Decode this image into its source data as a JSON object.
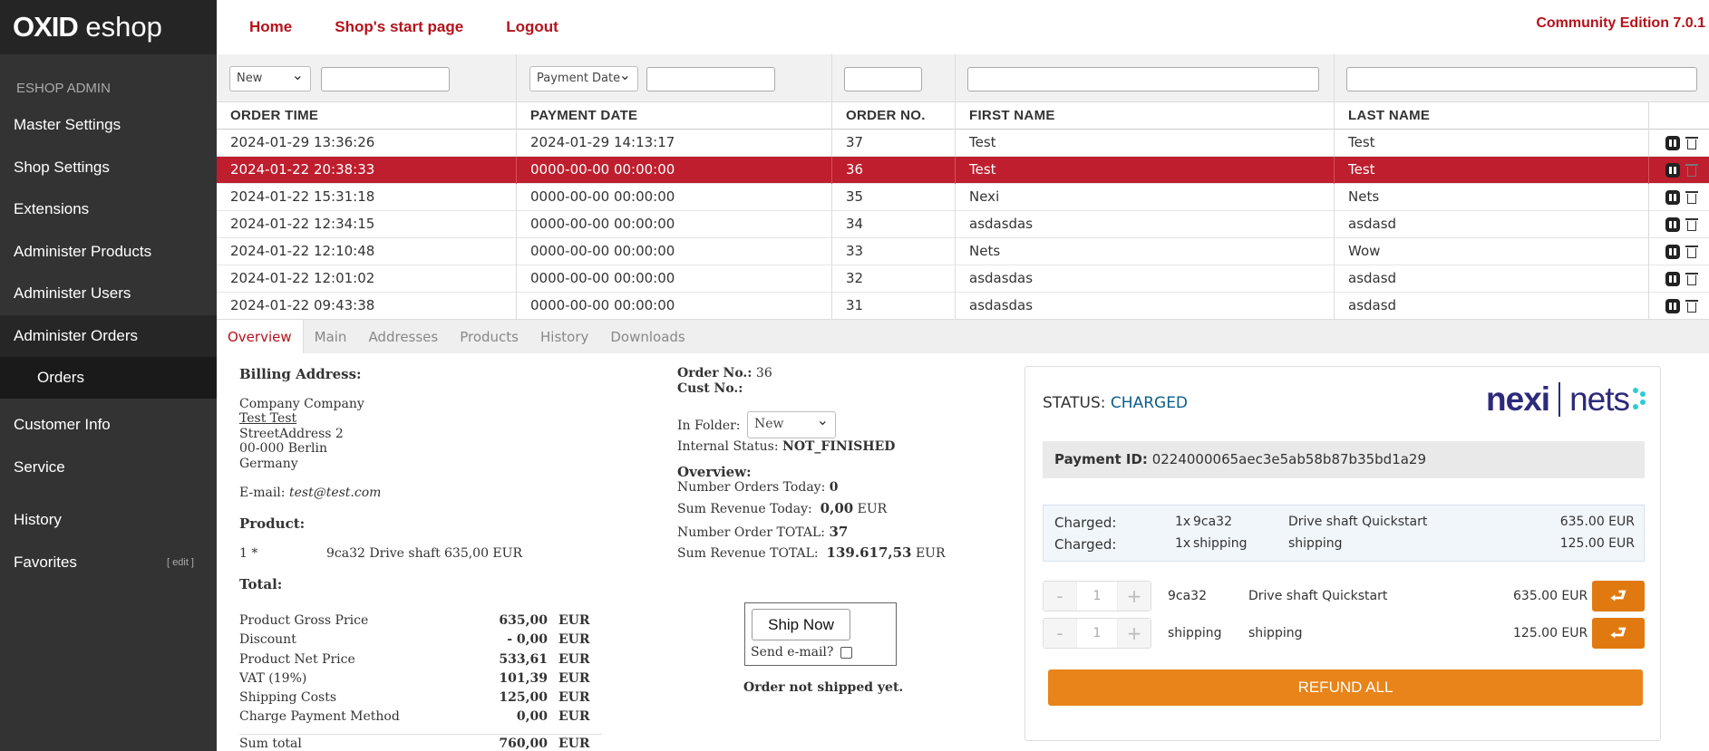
{
  "sidebar": {
    "logo_bold": "OXID",
    "logo_light": "eshop",
    "admin_label": "ESHOP ADMIN",
    "items": [
      {
        "label": "Master Settings"
      },
      {
        "label": "Shop Settings"
      },
      {
        "label": "Extensions"
      },
      {
        "label": "Administer Products"
      },
      {
        "label": "Administer Users"
      },
      {
        "label": "Administer Orders"
      },
      {
        "label": "Orders"
      },
      {
        "label": "Customer Info"
      },
      {
        "label": "Service"
      },
      {
        "label": "History"
      },
      {
        "label": "Favorites"
      }
    ],
    "favorites_edit": "[ edit ]"
  },
  "topnav": {
    "home": "Home",
    "start": "Shop's start page",
    "logout": "Logout",
    "edition": "Community Edition 7.0.1"
  },
  "filters": {
    "folder_value": "New",
    "date_type_value": "Payment Date"
  },
  "table": {
    "headers": [
      "ORDER TIME",
      "PAYMENT DATE",
      "ORDER NO.",
      "FIRST NAME",
      "LAST NAME"
    ],
    "rows": [
      [
        "2024-01-29 13:36:26",
        "2024-01-29 14:13:17",
        "37",
        "Test",
        "Test"
      ],
      [
        "2024-01-22 20:38:33",
        "0000-00-00 00:00:00",
        "36",
        "Test",
        "Test"
      ],
      [
        "2024-01-22 15:31:18",
        "0000-00-00 00:00:00",
        "35",
        "Nexi",
        "Nets"
      ],
      [
        "2024-01-22 12:34:15",
        "0000-00-00 00:00:00",
        "34",
        "asdasdas",
        "asdasd"
      ],
      [
        "2024-01-22 12:10:48",
        "0000-00-00 00:00:00",
        "33",
        "Nets",
        "Wow"
      ],
      [
        "2024-01-22 12:01:02",
        "0000-00-00 00:00:00",
        "32",
        "asdasdas",
        "asdasd"
      ],
      [
        "2024-01-22 09:43:38",
        "0000-00-00 00:00:00",
        "31",
        "asdasdas",
        "asdasd"
      ]
    ]
  },
  "tabs": [
    "Overview",
    "Main",
    "Addresses",
    "Products",
    "History",
    "Downloads"
  ],
  "billing": {
    "title": "Billing Address:",
    "company": "Company Company",
    "name": "Test Test",
    "street": "StreetAddress 2",
    "city": "00-000 Berlin",
    "country": "Germany",
    "email_label": "E-mail:",
    "email": "test@test.com"
  },
  "product": {
    "title": "Product:",
    "qty": "1 *",
    "desc": "9ca32 Drive shaft",
    "price": "635,00 EUR"
  },
  "totals": {
    "title": "Total:",
    "rows": [
      {
        "label": "Product Gross Price",
        "value": "635,00",
        "cur": "EUR"
      },
      {
        "label": "Discount",
        "value": "- 0,00",
        "cur": "EUR"
      },
      {
        "label": "Product Net Price",
        "value": "533,61",
        "cur": "EUR"
      },
      {
        "label": "VAT (19%)",
        "value": "101,39",
        "cur": "EUR"
      },
      {
        "label": "Shipping Costs",
        "value": "125,00",
        "cur": "EUR"
      },
      {
        "label": "Charge Payment Method",
        "value": "0,00",
        "cur": "EUR"
      },
      {
        "label": "Sum total",
        "value": "760,00",
        "cur": "EUR"
      }
    ]
  },
  "order": {
    "no_label": "Order No.:",
    "no_value": "36",
    "cust_label": "Cust No.:",
    "folder_label": "In Folder:",
    "folder_value": "New",
    "internal_label": "Internal Status:",
    "internal_value": "NOT_FINISHED",
    "overview_title": "Overview:",
    "stats": [
      {
        "label": "Number Orders Today:",
        "value": "0",
        "cur": ""
      },
      {
        "label": "Sum Revenue Today:",
        "value": "0,00",
        "cur": "EUR"
      },
      {
        "label": "Number Order TOTAL:",
        "value": "37",
        "cur": ""
      },
      {
        "label": "Sum Revenue TOTAL:",
        "value": "139.617,53",
        "cur": "EUR"
      }
    ],
    "ship_button": "Ship Now",
    "send_email": "Send e-mail?",
    "not_shipped": "Order not shipped yet."
  },
  "nets": {
    "status_label": "STATUS:",
    "status_value": "CHARGED",
    "logo_left": "nexi",
    "logo_right": "nets",
    "payment_id_label": "Payment ID:",
    "payment_id": "0224000065aec3e5ab58b87b35bd1a29",
    "charged": [
      {
        "label": "Charged:",
        "qty": "1x",
        "ref": "9ca32",
        "name": "Drive shaft Quickstart",
        "amount": "635.00 EUR"
      },
      {
        "label": "Charged:",
        "qty": "1x",
        "ref": "shipping",
        "name": "shipping",
        "amount": "125.00 EUR"
      }
    ],
    "refund_rows": [
      {
        "qty": "1",
        "ref": "9ca32",
        "name": "Drive shaft Quickstart",
        "amount": "635.00 EUR"
      },
      {
        "qty": "1",
        "ref": "shipping",
        "name": "shipping",
        "amount": "125.00 EUR"
      }
    ],
    "refund_all": "REFUND ALL",
    "accent": "#e8841a"
  }
}
